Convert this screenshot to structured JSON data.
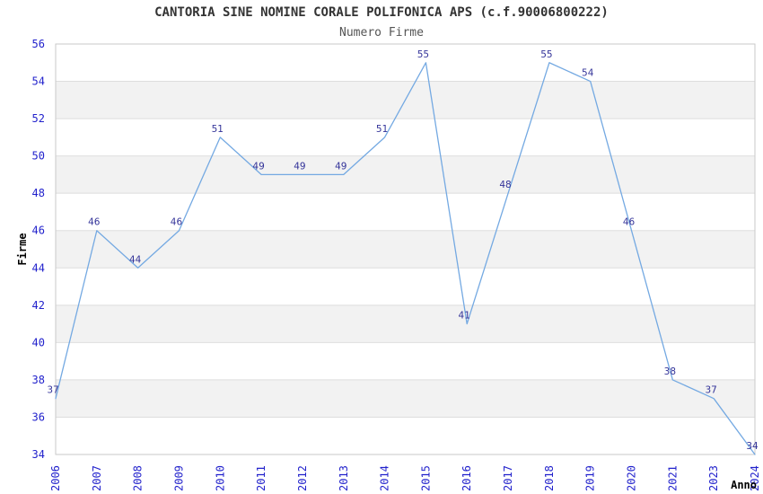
{
  "header": {
    "title": "CANTORIA SINE NOMINE CORALE POLIFONICA APS (c.f.90006800222)",
    "subtitle": "Numero Firme"
  },
  "chart_data": {
    "type": "line",
    "title": "CANTORIA SINE NOMINE CORALE POLIFONICA APS (c.f.90006800222)",
    "subtitle": "Numero Firme",
    "xlabel": "Anno",
    "ylabel": "Firme",
    "categories": [
      "2006",
      "2007",
      "2008",
      "2009",
      "2010",
      "2011",
      "2012",
      "2013",
      "2014",
      "2015",
      "2016",
      "2017",
      "2018",
      "2019",
      "2020",
      "2021",
      "2023",
      "2024"
    ],
    "series": [
      {
        "name": "Numero Firme",
        "values": [
          37,
          46,
          44,
          46,
          51,
          49,
          49,
          49,
          51,
          55,
          41,
          48,
          55,
          54,
          46,
          38,
          37,
          34
        ]
      }
    ],
    "point_labels": [
      "37",
      "46",
      "44",
      "46",
      "51",
      "49",
      "49",
      "49",
      "51",
      "55",
      "41",
      "48",
      "55",
      "54",
      "46",
      "38",
      "37",
      "34"
    ],
    "ylim": [
      34,
      56
    ],
    "ytick_step": 2,
    "yticks": [
      "34",
      "36",
      "38",
      "40",
      "42",
      "44",
      "46",
      "48",
      "50",
      "52",
      "54",
      "56"
    ],
    "grid": "horizontal-bands-every-2-units",
    "legend": "none",
    "colors": {
      "line": "#74a9e2",
      "point_label": "#333399",
      "tick_label": "#2222cc",
      "axis_title": "#000000",
      "band_gray": "#f2f2f2",
      "gridline": "#dedede",
      "plot_border": "#c9c9c9",
      "title": "#333333",
      "subtitle": "#555555",
      "background": "#ffffff"
    }
  }
}
